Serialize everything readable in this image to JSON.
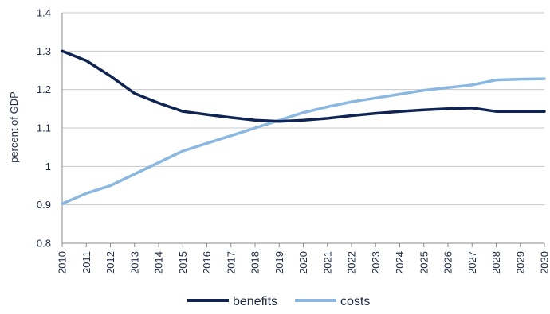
{
  "chart_data": {
    "type": "line",
    "title": "",
    "xlabel": "",
    "ylabel": "percent of GDP",
    "ylim": [
      0.8,
      1.4
    ],
    "yticks": [
      "0.8",
      "0.9",
      "1",
      "1.1",
      "1.2",
      "1.3",
      "1.4"
    ],
    "grid": "horizontal",
    "legend_position": "bottom",
    "x": [
      "2010",
      "2011",
      "2012",
      "2013",
      "2014",
      "2015",
      "2016",
      "2017",
      "2018",
      "2019",
      "2020",
      "2021",
      "2022",
      "2023",
      "2024",
      "2025",
      "2026",
      "2027",
      "2028",
      "2029",
      "2030"
    ],
    "series": [
      {
        "name": "benefits",
        "color": "#0f2452",
        "values": [
          1.3,
          1.275,
          1.235,
          1.19,
          1.165,
          1.143,
          1.135,
          1.127,
          1.12,
          1.117,
          1.12,
          1.125,
          1.132,
          1.138,
          1.143,
          1.147,
          1.15,
          1.152,
          1.143,
          1.143,
          1.143
        ]
      },
      {
        "name": "costs",
        "color": "#8ab8e0",
        "values": [
          0.903,
          0.93,
          0.95,
          0.98,
          1.01,
          1.04,
          1.06,
          1.08,
          1.1,
          1.12,
          1.14,
          1.155,
          1.168,
          1.178,
          1.188,
          1.198,
          1.205,
          1.212,
          1.225,
          1.227,
          1.228
        ]
      }
    ]
  }
}
